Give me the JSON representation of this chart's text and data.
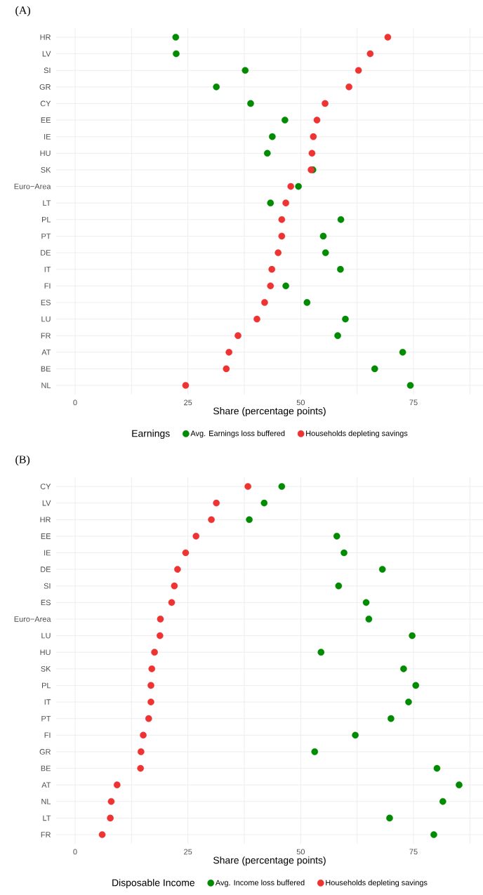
{
  "chart_data": [
    {
      "type": "scatter",
      "orientation": "horizontal",
      "title": "(A)",
      "xlabel": "Share (percentage points)",
      "legend_title": "Earnings",
      "legend": "bottom",
      "grid": true,
      "marker": "circle",
      "categories": [
        "HR",
        "LV",
        "SI",
        "GR",
        "CY",
        "EE",
        "IE",
        "HU",
        "SK",
        "Euro−Area",
        "LT",
        "PL",
        "PT",
        "DE",
        "IT",
        "FI",
        "ES",
        "LU",
        "FR",
        "AT",
        "BE",
        "NL"
      ],
      "xlim": [
        -4.2,
        90.4
      ],
      "xticks": [
        0,
        {
          "value": 12.5,
          "label": null
        },
        25,
        {
          "value": 37.5,
          "label": null
        },
        50,
        {
          "value": 62.5,
          "label": null
        },
        75,
        {
          "value": 87.5,
          "label": null
        }
      ],
      "series": [
        {
          "name": "Avg. Earnings loss buffered",
          "color": "#008b00",
          "values": [
            22.3,
            22.4,
            37.7,
            31.3,
            38.9,
            46.5,
            43.7,
            42.6,
            52.7,
            49.5,
            43.3,
            58.9,
            55.0,
            55.5,
            58.8,
            46.7,
            51.4,
            59.9,
            58.2,
            72.6,
            66.4,
            74.3
          ]
        },
        {
          "name": "Households depleting savings",
          "color": "#ee3333",
          "values": [
            69.3,
            65.4,
            62.8,
            60.7,
            55.4,
            53.6,
            52.8,
            52.5,
            52.3,
            47.8,
            46.7,
            45.8,
            45.8,
            45.0,
            43.6,
            43.3,
            42.0,
            40.3,
            36.1,
            34.1,
            33.5,
            24.5
          ]
        }
      ]
    },
    {
      "type": "scatter",
      "orientation": "horizontal",
      "title": "(B)",
      "xlabel": "Share (percentage points)",
      "legend_title": "Disposable Income",
      "legend": "bottom",
      "grid": true,
      "marker": "circle",
      "categories": [
        "CY",
        "LV",
        "HR",
        "EE",
        "IE",
        "DE",
        "SI",
        "ES",
        "Euro−Area",
        "LU",
        "HU",
        "SK",
        "PL",
        "IT",
        "PT",
        "FI",
        "GR",
        "BE",
        "AT",
        "NL",
        "LT",
        "FR"
      ],
      "xlim": [
        -4.2,
        90.4
      ],
      "xticks": [
        0,
        {
          "value": 12.5,
          "label": null
        },
        25,
        {
          "value": 37.5,
          "label": null
        },
        50,
        {
          "value": 62.5,
          "label": null
        },
        75,
        {
          "value": 87.5,
          "label": null
        }
      ],
      "series": [
        {
          "name": "Avg. Income loss buffered",
          "color": "#008b00",
          "values": [
            45.8,
            41.9,
            38.6,
            58.0,
            59.6,
            68.1,
            58.4,
            64.5,
            65.1,
            74.7,
            54.5,
            72.8,
            75.5,
            73.9,
            70.0,
            62.1,
            53.1,
            80.2,
            85.1,
            81.5,
            69.7,
            79.5
          ]
        },
        {
          "name": "Households depleting savings",
          "color": "#ee3333",
          "values": [
            38.3,
            31.3,
            30.2,
            26.8,
            24.5,
            22.7,
            22.0,
            21.4,
            18.9,
            18.8,
            17.6,
            17.0,
            16.8,
            16.8,
            16.3,
            15.1,
            14.6,
            14.5,
            9.3,
            8.0,
            7.8,
            6.0
          ]
        }
      ]
    }
  ]
}
